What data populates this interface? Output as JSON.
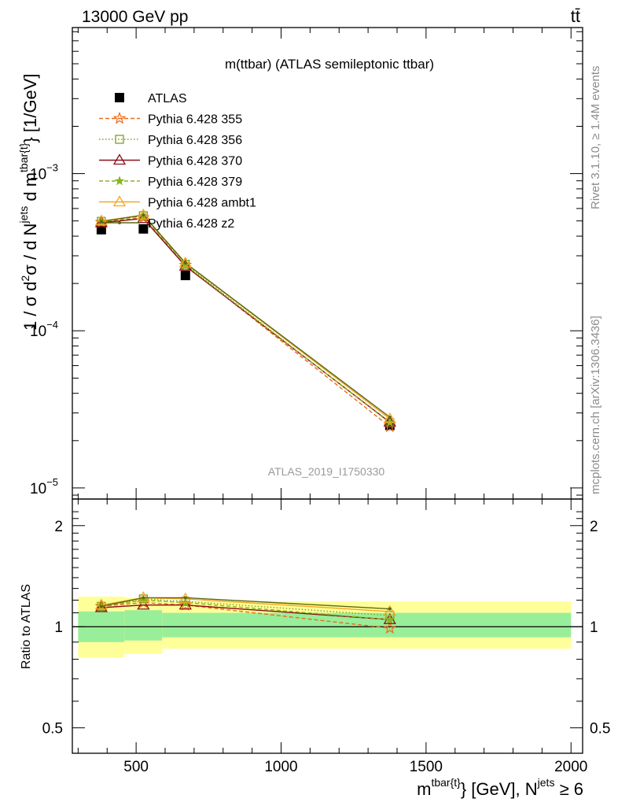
{
  "header": {
    "energy_label": "13000 GeV pp",
    "process_label": "tt̄"
  },
  "side_labels": {
    "rivet": "Rivet 3.1.10, ≥ 1.4M events",
    "mcplots": "mcplots.cern.ch [arXiv:1306.3436]"
  },
  "colors": {
    "ATLAS": "#000000",
    "Pythia 6.428 355": "#ee6a1a",
    "Pythia 6.428 356": "#7f9f1f",
    "Pythia 6.428 370": "#8b0f1a",
    "Pythia 6.428 379": "#88b41e",
    "Pythia 6.428 ambt1": "#f5a623",
    "Pythia 6.428 z2": "#5a6a10",
    "band_inner": "#99ee99",
    "band_outer": "#ffff99"
  },
  "chart_data": [
    {
      "type": "line",
      "title": "m(ttbar) (ATLAS semileptonic ttbar)",
      "watermark": "ATLAS_2019_I1750330",
      "ylabel": "1 / σ d²σ / d N^jets d m^tbar{t} [1/GeV]",
      "y_scale": "log",
      "xlim": [
        280,
        2040
      ],
      "ylim": [
        8.5e-06,
        0.0085
      ],
      "y_ticks": [
        {
          "value": 0.001,
          "mantissa": "10",
          "exponent": "−3"
        },
        {
          "value": 0.0001,
          "mantissa": "10",
          "exponent": "−4"
        },
        {
          "value": 1e-05,
          "mantissa": "10",
          "exponent": "−5"
        }
      ],
      "legend_position": "top-left",
      "x": [
        380,
        525,
        670,
        1375
      ],
      "series": [
        {
          "name": "ATLAS",
          "marker": "square",
          "values": [
            0.00044,
            0.000445,
            0.000225,
            2.5e-05
          ]
        },
        {
          "name": "Pythia 6.428 355",
          "marker": "star-open",
          "style": "dashed",
          "values": [
            0.00049,
            0.000525,
            0.000262,
            2.45e-05
          ]
        },
        {
          "name": "Pythia 6.428 356",
          "marker": "square-open",
          "style": "dotted",
          "values": [
            0.000497,
            0.00054,
            0.000265,
            2.6e-05
          ]
        },
        {
          "name": "Pythia 6.428 370",
          "marker": "triangle-open",
          "style": "solid",
          "values": [
            0.000487,
            0.000518,
            0.000258,
            2.62e-05
          ]
        },
        {
          "name": "Pythia 6.428 379",
          "marker": "star-filled",
          "style": "dashed",
          "values": [
            0.000495,
            0.000538,
            0.000262,
            2.6e-05
          ]
        },
        {
          "name": "Pythia 6.428 ambt1",
          "marker": "triangle-open",
          "style": "solid",
          "values": [
            0.0005,
            0.000545,
            0.00027,
            2.75e-05
          ]
        },
        {
          "name": "Pythia 6.428 z2",
          "marker": "dot",
          "style": "solid",
          "values": [
            0.000495,
            0.000545,
            0.00027,
            2.82e-05
          ]
        }
      ]
    },
    {
      "type": "line",
      "ylabel": "Ratio to ATLAS",
      "xlabel": "m^tbar{t} [GeV], N^jets ≥ 6",
      "y_scale": "log",
      "xlim": [
        280,
        2040
      ],
      "ylim": [
        0.42,
        2.4
      ],
      "x_ticks": [
        500,
        1000,
        1500,
        2000
      ],
      "y_ticks": [
        0.5,
        1,
        2
      ],
      "bins": [
        {
          "x": [
            300,
            460
          ],
          "stat": [
            0.9,
            1.11
          ],
          "total": [
            0.81,
            1.23
          ]
        },
        {
          "x": [
            460,
            590
          ],
          "stat": [
            0.91,
            1.12
          ],
          "total": [
            0.83,
            1.22
          ]
        },
        {
          "x": [
            590,
            2000
          ],
          "stat": [
            0.93,
            1.1
          ],
          "total": [
            0.86,
            1.19
          ]
        }
      ],
      "x": [
        380,
        525,
        670,
        1375
      ],
      "series": [
        {
          "name": "Pythia 6.428 355",
          "values": [
            1.15,
            1.18,
            1.16,
            0.99
          ]
        },
        {
          "name": "Pythia 6.428 356",
          "values": [
            1.15,
            1.21,
            1.19,
            1.08
          ]
        },
        {
          "name": "Pythia 6.428 370",
          "values": [
            1.14,
            1.16,
            1.16,
            1.05
          ]
        },
        {
          "name": "Pythia 6.428 379",
          "values": [
            1.15,
            1.2,
            1.18,
            1.05
          ]
        },
        {
          "name": "Pythia 6.428 ambt1",
          "values": [
            1.16,
            1.22,
            1.21,
            1.11
          ]
        },
        {
          "name": "Pythia 6.428 z2",
          "values": [
            1.15,
            1.22,
            1.22,
            1.13
          ]
        }
      ]
    }
  ]
}
